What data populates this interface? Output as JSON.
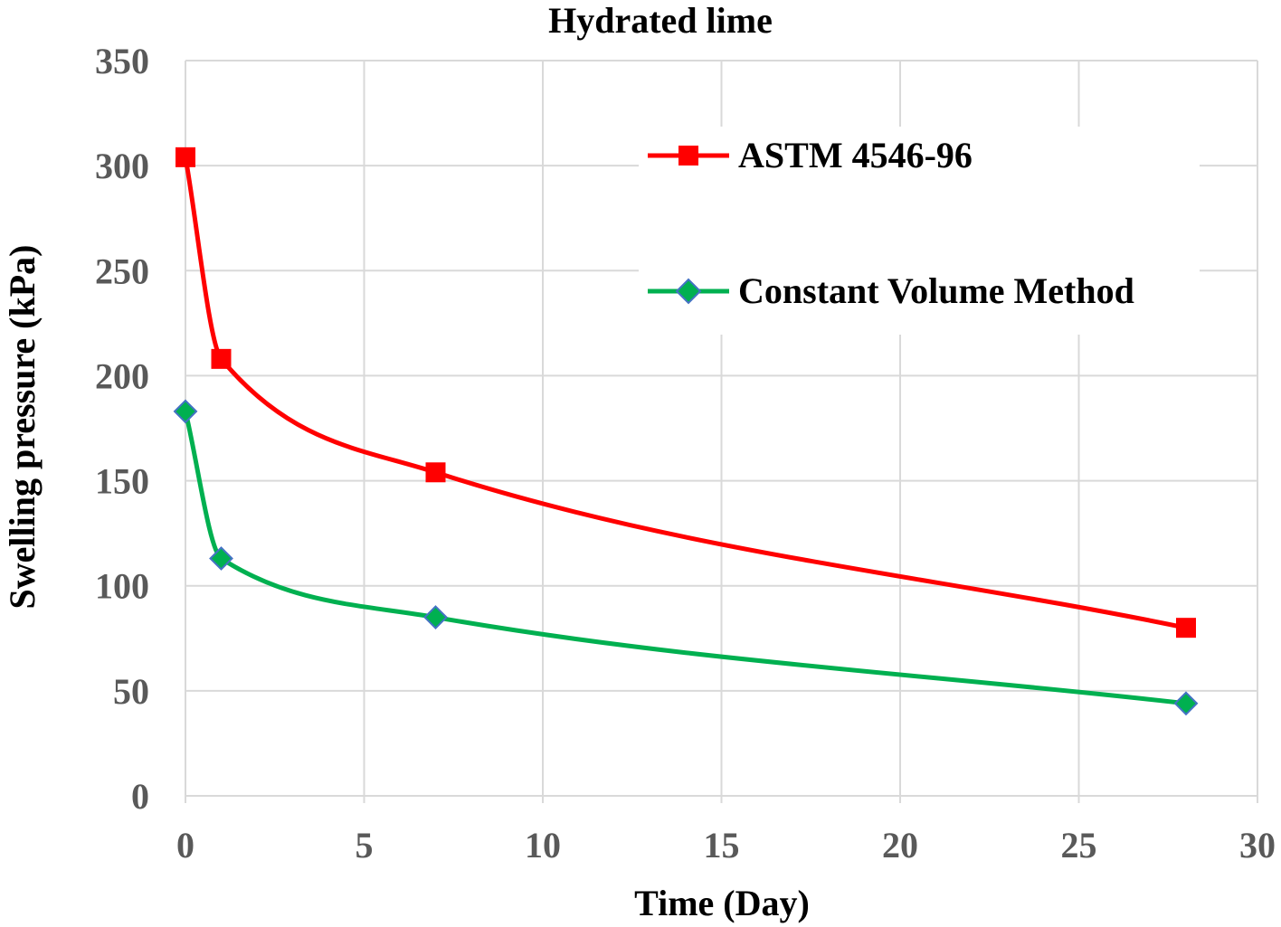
{
  "chart_data": {
    "type": "line",
    "title": "Hydrated lime",
    "xlabel": "Time (Day)",
    "ylabel": "Swelling pressure (kPa)",
    "xlim": [
      0,
      30
    ],
    "ylim": [
      0,
      350
    ],
    "xticks": [
      0,
      5,
      10,
      15,
      20,
      25,
      30
    ],
    "yticks": [
      0,
      50,
      100,
      150,
      200,
      250,
      300,
      350
    ],
    "grid": true,
    "legend_position": "top-right",
    "series": [
      {
        "name": "ASTM 4546-96",
        "color": "#ff0000",
        "marker": "square",
        "x": [
          0,
          1,
          7,
          28
        ],
        "y": [
          304,
          208,
          154,
          80
        ]
      },
      {
        "name": "Constant Volume Method",
        "color": "#00b050",
        "marker": "diamond",
        "marker_color": "#00b050",
        "marker_edge": "#4472c4",
        "x": [
          0,
          1,
          7,
          28
        ],
        "y": [
          183,
          113,
          85,
          44
        ]
      }
    ]
  }
}
